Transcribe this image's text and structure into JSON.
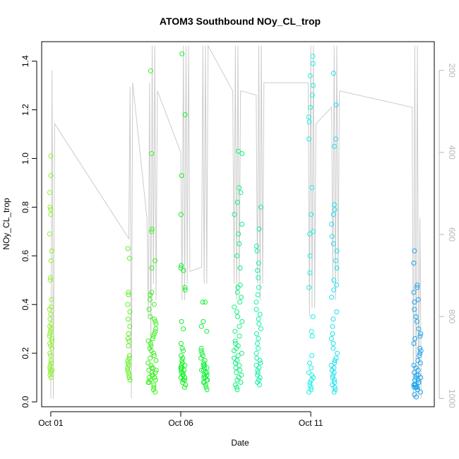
{
  "chart_data": {
    "type": "scatter",
    "title": "ATOM3 Southbound NOy_CL_trop",
    "xlabel": "Date",
    "ylabel": "NOy_CL_trop",
    "x_ticks": [
      "Oct 01",
      "Oct 06",
      "Oct 11"
    ],
    "x_tick_days": [
      1,
      6,
      11
    ],
    "xlim_days": [
      0.65,
      15.75
    ],
    "ylim": [
      -0.02,
      1.48
    ],
    "y_ticks": [
      0.0,
      0.2,
      0.4,
      0.6,
      0.8,
      1.0,
      1.2,
      1.4
    ],
    "y_tick_labels": [
      "0.0",
      "0.2",
      "0.4",
      "0.6",
      "0.8",
      "1.0",
      "1.2",
      "1.4"
    ],
    "right_axis": {
      "label_color": "#b8b8b8",
      "ticks": [
        200,
        400,
        600,
        800,
        1000
      ],
      "tick_labels": [
        "200",
        "400",
        "600",
        "800",
        "1000"
      ],
      "range": [
        130,
        1020
      ],
      "description": "pressure (hPa), inverted, grey flight track line"
    },
    "grid": false,
    "point_style": "open circles",
    "series": [
      {
        "color": "#8ef02c",
        "day": 1.0,
        "spread": 0.05,
        "values": [
          1.01,
          0.93,
          0.86,
          0.8,
          0.79,
          0.77,
          0.69,
          0.62,
          0.58,
          0.51,
          0.5,
          0.42,
          0.39,
          0.38,
          0.36,
          0.34,
          0.32,
          0.31,
          0.3,
          0.29,
          0.28,
          0.27,
          0.26,
          0.25,
          0.24,
          0.23,
          0.22,
          0.2,
          0.19,
          0.17,
          0.16,
          0.15,
          0.14,
          0.13,
          0.12,
          0.11,
          0.1,
          0.13
        ]
      },
      {
        "color": "#5ef020",
        "day": 4.0,
        "spread": 0.05,
        "values": [
          0.63,
          0.59,
          0.45,
          0.44,
          0.4,
          0.37,
          0.34,
          0.31,
          0.28,
          0.26,
          0.25,
          0.23,
          0.19,
          0.18,
          0.17,
          0.16,
          0.15,
          0.14,
          0.13,
          0.12,
          0.11,
          0.1,
          0.09
        ]
      },
      {
        "color": "#3cf01e",
        "day": 4.9,
        "spread": 0.16,
        "values": [
          1.36,
          1.02,
          0.71,
          0.7,
          0.58,
          0.55,
          0.45,
          0.44,
          0.42,
          0.4,
          0.38,
          0.35,
          0.34,
          0.33,
          0.32,
          0.3,
          0.29,
          0.28,
          0.27,
          0.26,
          0.25,
          0.24,
          0.23,
          0.22,
          0.21,
          0.2,
          0.19,
          0.18,
          0.17,
          0.16,
          0.15,
          0.14,
          0.14,
          0.13,
          0.13,
          0.12,
          0.12,
          0.11,
          0.11,
          0.1,
          0.1,
          0.09,
          0.09,
          0.08,
          0.08,
          0.07,
          0.06,
          0.05,
          0.04
        ]
      },
      {
        "color": "#12f024",
        "day": 6.1,
        "spread": 0.1,
        "values": [
          1.43,
          1.18,
          0.93,
          0.77,
          0.56,
          0.55,
          0.54,
          0.47,
          0.46,
          0.33,
          0.3,
          0.24,
          0.22,
          0.21,
          0.19,
          0.18,
          0.17,
          0.16,
          0.15,
          0.15,
          0.14,
          0.14,
          0.13,
          0.13,
          0.12,
          0.12,
          0.11,
          0.11,
          0.1,
          0.1,
          0.09,
          0.09,
          0.08,
          0.07,
          0.06
        ]
      },
      {
        "color": "#10f038",
        "day": 6.9,
        "spread": 0.13,
        "values": [
          0.41,
          0.41,
          0.33,
          0.31,
          0.29,
          0.22,
          0.21,
          0.2,
          0.19,
          0.18,
          0.17,
          0.16,
          0.15,
          0.15,
          0.14,
          0.14,
          0.13,
          0.13,
          0.12,
          0.12,
          0.11,
          0.11,
          0.1,
          0.1,
          0.09,
          0.09,
          0.08,
          0.08,
          0.07,
          0.06,
          0.05
        ]
      },
      {
        "color": "#14f07e",
        "day": 8.2,
        "spread": 0.16,
        "values": [
          1.03,
          1.02,
          0.88,
          0.86,
          0.82,
          0.77,
          0.73,
          0.69,
          0.65,
          0.6,
          0.55,
          0.48,
          0.47,
          0.45,
          0.43,
          0.41,
          0.39,
          0.37,
          0.35,
          0.33,
          0.31,
          0.29,
          0.27,
          0.25,
          0.24,
          0.23,
          0.22,
          0.21,
          0.2,
          0.19,
          0.18,
          0.17,
          0.16,
          0.15,
          0.14,
          0.13,
          0.12,
          0.11,
          0.1,
          0.09,
          0.08,
          0.07,
          0.06,
          0.05
        ]
      },
      {
        "color": "#18f0a8",
        "day": 9.0,
        "spread": 0.1,
        "values": [
          0.8,
          0.71,
          0.64,
          0.62,
          0.57,
          0.54,
          0.51,
          0.47,
          0.44,
          0.41,
          0.38,
          0.36,
          0.34,
          0.32,
          0.3,
          0.28,
          0.26,
          0.24,
          0.22,
          0.2,
          0.18,
          0.17,
          0.16,
          0.15,
          0.14,
          0.13,
          0.12,
          0.11,
          0.1,
          0.09,
          0.08,
          0.07
        ]
      },
      {
        "color": "#1cf0e6",
        "day": 11.0,
        "spread": 0.1,
        "values": [
          1.42,
          1.39,
          1.34,
          1.3,
          1.26,
          1.21,
          1.17,
          1.15,
          1.08,
          0.88,
          0.77,
          0.7,
          0.69,
          0.6,
          0.53,
          0.47,
          0.35,
          0.29,
          0.27,
          0.19,
          0.16,
          0.14,
          0.12,
          0.11,
          0.1,
          0.09,
          0.08,
          0.07,
          0.06,
          0.05,
          0.04
        ]
      },
      {
        "color": "#1ee0f0",
        "day": 11.9,
        "spread": 0.12,
        "values": [
          1.35,
          1.22,
          1.08,
          1.05,
          0.81,
          0.79,
          0.77,
          0.73,
          0.68,
          0.65,
          0.62,
          0.58,
          0.55,
          0.5,
          0.48,
          0.46,
          0.43,
          0.37,
          0.34,
          0.31,
          0.28,
          0.26,
          0.24,
          0.22,
          0.2,
          0.18,
          0.17,
          0.16,
          0.15,
          0.14,
          0.13,
          0.12,
          0.11,
          0.1,
          0.09,
          0.08,
          0.07,
          0.06,
          0.05,
          0.04
        ]
      },
      {
        "color": "#1ea6f0",
        "day": 15.1,
        "spread": 0.14,
        "values": [
          0.62,
          0.57,
          0.48,
          0.47,
          0.45,
          0.42,
          0.41,
          0.38,
          0.35,
          0.33,
          0.3,
          0.28,
          0.27,
          0.26,
          0.24,
          0.22,
          0.21,
          0.2,
          0.19,
          0.17,
          0.16,
          0.15,
          0.14,
          0.13,
          0.12,
          0.11,
          0.11,
          0.1,
          0.1,
          0.09,
          0.09,
          0.08,
          0.08,
          0.07,
          0.07,
          0.07,
          0.06,
          0.06,
          0.06,
          0.06,
          0.05,
          0.05,
          0.04,
          0.03,
          0.02
        ]
      }
    ],
    "pressure_track": {
      "color": "#cccccc",
      "points": [
        [
          1.0,
          1000
        ],
        [
          1.05,
          200
        ],
        [
          1.1,
          1000
        ],
        [
          1.15,
          330
        ],
        [
          4.0,
          610
        ],
        [
          4.05,
          240
        ],
        [
          4.1,
          1000
        ],
        [
          4.15,
          230
        ],
        [
          4.7,
          560
        ],
        [
          4.75,
          800
        ],
        [
          4.8,
          230
        ],
        [
          4.85,
          900
        ],
        [
          4.9,
          140
        ],
        [
          4.95,
          720
        ],
        [
          5.0,
          140
        ],
        [
          5.05,
          760
        ],
        [
          5.1,
          250
        ],
        [
          6.0,
          400
        ],
        [
          6.05,
          760
        ],
        [
          6.1,
          140
        ],
        [
          6.15,
          760
        ],
        [
          6.2,
          140
        ],
        [
          6.25,
          720
        ],
        [
          6.3,
          140
        ],
        [
          6.35,
          690
        ],
        [
          6.8,
          680
        ],
        [
          6.85,
          140
        ],
        [
          6.9,
          720
        ],
        [
          6.95,
          140
        ],
        [
          7.0,
          720
        ],
        [
          7.05,
          140
        ],
        [
          8.0,
          250
        ],
        [
          8.05,
          720
        ],
        [
          8.1,
          140
        ],
        [
          8.15,
          760
        ],
        [
          8.2,
          140
        ],
        [
          8.25,
          720
        ],
        [
          8.3,
          250
        ],
        [
          8.9,
          260
        ],
        [
          8.95,
          720
        ],
        [
          9.0,
          140
        ],
        [
          9.05,
          760
        ],
        [
          9.1,
          140
        ],
        [
          9.15,
          720
        ],
        [
          9.2,
          230
        ],
        [
          10.9,
          230
        ],
        [
          10.95,
          800
        ],
        [
          11.0,
          140
        ],
        [
          11.05,
          780
        ],
        [
          11.1,
          140
        ],
        [
          11.15,
          780
        ],
        [
          11.2,
          330
        ],
        [
          11.8,
          290
        ],
        [
          11.85,
          720
        ],
        [
          11.9,
          140
        ],
        [
          11.95,
          760
        ],
        [
          12.0,
          140
        ],
        [
          12.05,
          720
        ],
        [
          12.1,
          250
        ],
        [
          14.9,
          290
        ],
        [
          14.95,
          1000
        ],
        [
          15.0,
          140
        ],
        [
          15.05,
          1000
        ],
        [
          15.1,
          140
        ],
        [
          15.15,
          1000
        ],
        [
          15.2,
          560
        ],
        [
          15.25,
          1000
        ]
      ]
    }
  }
}
